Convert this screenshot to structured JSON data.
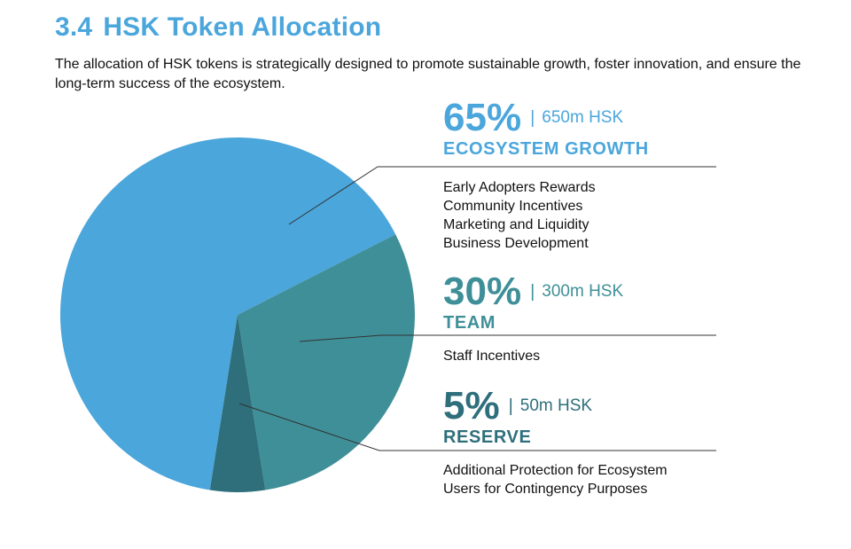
{
  "header": {
    "section_number": "3.4",
    "title": "HSK Token Allocation",
    "intro": "The allocation of HSK tokens is strategically designed to promote sustainable growth, foster innovation, and ensure the long-term success of the ecosystem."
  },
  "allocations": [
    {
      "percent": "65%",
      "separator": "|",
      "amount": "650m HSK",
      "category": "ECOSYSTEM GROWTH",
      "items": [
        "Early Adopters Rewards",
        "Community Incentives",
        "Marketing and Liquidity",
        "Business Development"
      ]
    },
    {
      "percent": "30%",
      "separator": "|",
      "amount": "300m HSK",
      "category": "TEAM",
      "items": [
        "Staff Incentives"
      ]
    },
    {
      "percent": "5%",
      "separator": "|",
      "amount": "50m HSK",
      "category": "RESERVE",
      "items": [
        "Additional Protection for Ecosystem",
        "Users for Contingency Purposes"
      ]
    }
  ],
  "colors": {
    "ecosystem": "#4ba6dc",
    "team": "#3f8f98",
    "reserve": "#2e6f7b",
    "leader_line": "#333333"
  },
  "chart_data": {
    "type": "pie",
    "categories": [
      "ECOSYSTEM GROWTH",
      "TEAM",
      "RESERVE"
    ],
    "values": [
      65,
      30,
      5
    ],
    "amounts_m_hsk": [
      650,
      300,
      50
    ],
    "unit": "%",
    "legend": "right"
  }
}
